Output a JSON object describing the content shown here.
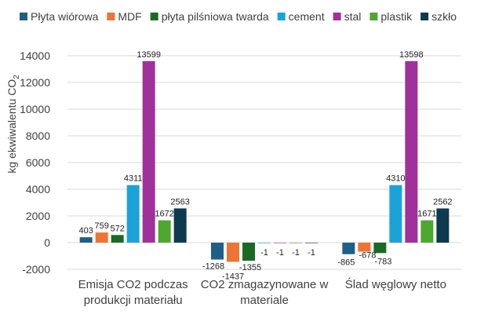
{
  "chart_data": {
    "type": "bar",
    "ylabel": "kg ekwiwalentu CO",
    "ylabel_subscript": "2",
    "ylim": [
      -2000,
      14000
    ],
    "ytick_step": 2000,
    "grid": true,
    "legend_position": "top",
    "categories": [
      [
        "Emisja CO2 podczas",
        "produkcji materiału"
      ],
      [
        "CO2 zmagazynowane w",
        "materiale"
      ],
      [
        "Ślad węglowy netto"
      ]
    ],
    "series": [
      {
        "name": "Płyta wiórowa",
        "color": "#1F5F86",
        "values": [
          403,
          -1268,
          -865
        ]
      },
      {
        "name": "MDF",
        "color": "#EE7434",
        "values": [
          759,
          -1437,
          -678
        ]
      },
      {
        "name": "płyta pilśniowa twarda",
        "color": "#196B24",
        "values": [
          572,
          -1355,
          -783
        ]
      },
      {
        "name": "cement",
        "color": "#1AA3D9",
        "values": [
          4311,
          -1,
          4310
        ]
      },
      {
        "name": "stal",
        "color": "#A0309B",
        "values": [
          13599,
          -1,
          13598
        ]
      },
      {
        "name": "plastik",
        "color": "#4EA72E",
        "values": [
          1672,
          -1,
          1671
        ]
      },
      {
        "name": "szkło",
        "color": "#0E3A4F",
        "values": [
          2563,
          -1,
          2562
        ]
      }
    ]
  }
}
